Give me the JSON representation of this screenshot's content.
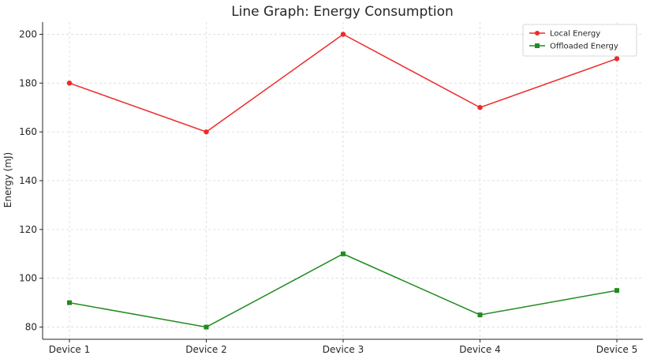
{
  "chart_data": {
    "type": "line",
    "title": "Line Graph: Energy Consumption",
    "xlabel": "",
    "ylabel": "Energy (mJ)",
    "categories": [
      "Device 1",
      "Device 2",
      "Device 3",
      "Device 4",
      "Device 5"
    ],
    "ylim": [
      75,
      205
    ],
    "yticks": [
      80,
      100,
      120,
      140,
      160,
      180,
      200
    ],
    "grid": true,
    "legend_position": "top-right",
    "series": [
      {
        "name": "Local Energy",
        "values": [
          180,
          160,
          200,
          170,
          190
        ],
        "color": "#ee2a2a",
        "marker": "circle"
      },
      {
        "name": "Offloaded Energy",
        "values": [
          90,
          80,
          110,
          85,
          95
        ],
        "color": "#218b21",
        "marker": "square"
      }
    ]
  }
}
